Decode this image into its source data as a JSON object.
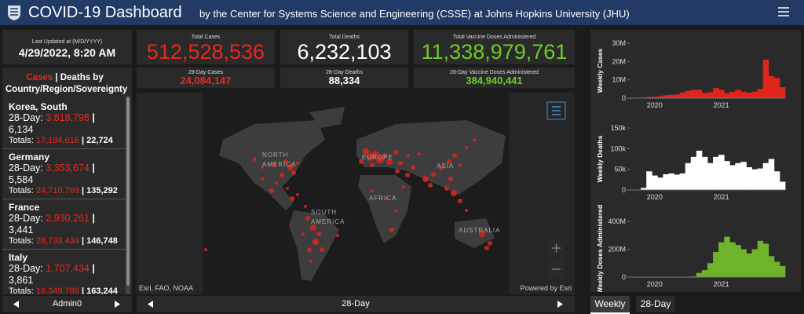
{
  "header": {
    "title": "COVID-19 Dashboard",
    "subtitle": "by the Center for Systems Science and Engineering (CSSE) at Johns Hopkins University (JHU)"
  },
  "last_updated": {
    "label": "Last Updated at (M/D/YYYY)",
    "value": "4/29/2022, 8:20 AM"
  },
  "stats": [
    {
      "label": "Total Cases",
      "value": "512,528,536",
      "color": "#e8281f"
    },
    {
      "label": "Total Deaths",
      "value": "6,232,103",
      "color": "#ffffff"
    },
    {
      "label": "Total Vaccine Doses Administered",
      "value": "11,338,979,761",
      "color": "#70c928"
    }
  ],
  "stats_28day": [
    {
      "label": "28-Day Cases",
      "value": "24,084,147",
      "color": "#e8281f"
    },
    {
      "label": "28-Day Deaths",
      "value": "88,334",
      "color": "#ffffff"
    },
    {
      "label": "28-Day Vaccine Doses Administered",
      "value": "384,940,441",
      "color": "#70c928"
    }
  ],
  "list": {
    "heading": {
      "cases": "Cases",
      "separator": "|",
      "rest": "Deaths by Country/Region/Sovereignty"
    },
    "day28_label": "28-Day:",
    "totals_label": "Totals:",
    "separator": "|",
    "entries": [
      {
        "name": "Korea, South",
        "cases28": "3,818,798",
        "deaths28": "6,134",
        "cases_total": "17,194,616",
        "deaths_total": "22,724"
      },
      {
        "name": "Germany",
        "cases28": "3,353,674",
        "deaths28": "5,584",
        "cases_total": "24,710,769",
        "deaths_total": "135,292"
      },
      {
        "name": "France",
        "cases28": "2,930,261",
        "deaths28": "3,441",
        "cases_total": "28,733,434",
        "deaths_total": "146,748"
      },
      {
        "name": "Italy",
        "cases28": "1,707,434",
        "deaths28": "3,861",
        "cases_total": "16,349,788",
        "deaths_total": "163,244"
      }
    ],
    "footer": "Admin0"
  },
  "map": {
    "regions": [
      {
        "lines": [
          "NORTH",
          "AMERICA"
        ]
      },
      {
        "lines": [
          "EUROPE"
        ]
      },
      {
        "lines": [
          "ASIA"
        ]
      },
      {
        "lines": [
          "AFRICA"
        ]
      },
      {
        "lines": [
          "SOUTH",
          "AMERICA"
        ]
      },
      {
        "lines": [
          "AUSTRALIA"
        ]
      }
    ],
    "attribution": "Esri, FAO, NOAA",
    "powered": "Powered by Esri",
    "footer": "28-Day"
  },
  "tabs": [
    "Weekly",
    "28-Day"
  ],
  "weekly_charts": [
    {
      "type": "bar",
      "y_label": "Weekly Cases",
      "color": "#e0241b",
      "categories": [
        null,
        null,
        null,
        null,
        "2020",
        null,
        null,
        null,
        null,
        null,
        null,
        null,
        null,
        null,
        null,
        null,
        "2021",
        null,
        null,
        null,
        null,
        null,
        null,
        null,
        null,
        null,
        null,
        null
      ],
      "values": [
        0,
        0,
        300000,
        600000,
        700000,
        1000000,
        1600000,
        1800000,
        2000000,
        3000000,
        4000000,
        4500000,
        4500000,
        2800000,
        3200000,
        5500000,
        4500000,
        2700000,
        3500000,
        4500000,
        3500000,
        3000000,
        3500000,
        5000000,
        21000000,
        12000000,
        11000000,
        6000000
      ],
      "ylim": [
        0,
        30000000
      ],
      "yticks": [
        0,
        {
          "value": 10000000,
          "label": "10M"
        },
        {
          "value": 20000000,
          "label": "20M"
        },
        {
          "value": 30000000,
          "label": "30M"
        }
      ]
    },
    {
      "type": "bar",
      "y_label": "Weekly Deaths",
      "color": "#ffffff",
      "categories": [
        null,
        null,
        null,
        null,
        "2020",
        null,
        null,
        null,
        null,
        null,
        null,
        null,
        null,
        null,
        null,
        null,
        "2021",
        null,
        null,
        null,
        null,
        null,
        null,
        null,
        null,
        null,
        null,
        null
      ],
      "values": [
        0,
        0,
        5000,
        45000,
        35000,
        30000,
        38000,
        40000,
        37000,
        40000,
        65000,
        80000,
        95000,
        80000,
        65000,
        80000,
        85000,
        70000,
        60000,
        65000,
        68000,
        55000,
        50000,
        52000,
        65000,
        75000,
        45000,
        20000
      ],
      "ylim": [
        0,
        150000
      ],
      "yticks": [
        0,
        {
          "value": 50000,
          "label": "50k"
        },
        {
          "value": 100000,
          "label": "100k"
        },
        {
          "value": 150000,
          "label": "150k"
        }
      ]
    },
    {
      "type": "bar",
      "y_label": "Weekly Doses Administered",
      "color": "#6fb32b",
      "categories": [
        null,
        null,
        null,
        null,
        "2020",
        null,
        null,
        null,
        null,
        null,
        null,
        null,
        null,
        null,
        null,
        null,
        "2021",
        null,
        null,
        null,
        null,
        null,
        null,
        null,
        null,
        null,
        null,
        null
      ],
      "values": [
        0,
        0,
        0,
        0,
        0,
        0,
        0,
        0,
        0,
        0,
        0,
        5000000,
        30000000,
        50000000,
        100000000,
        180000000,
        250000000,
        290000000,
        250000000,
        230000000,
        200000000,
        170000000,
        200000000,
        260000000,
        240000000,
        150000000,
        110000000,
        80000000
      ],
      "ylim": [
        0,
        400000000
      ],
      "yticks": [
        0,
        {
          "value": 200000000,
          "label": "200M"
        },
        {
          "value": 400000000,
          "label": "400M"
        }
      ]
    }
  ]
}
